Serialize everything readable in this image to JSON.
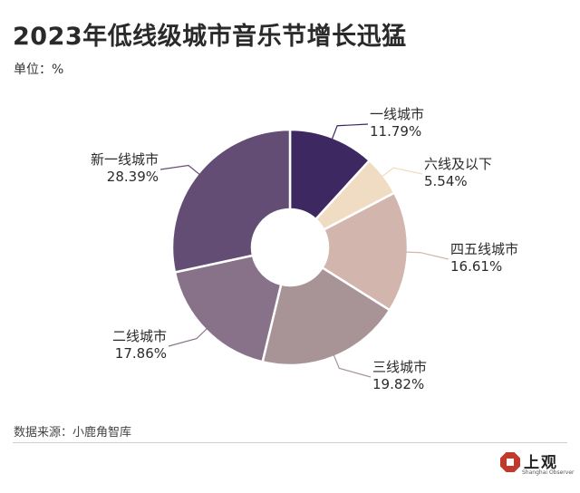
{
  "header": {
    "title": "2023年低线级城市音乐节增长迅猛",
    "unit": "单位：%"
  },
  "chart_data": {
    "type": "pie",
    "subtype": "donut",
    "categories": [
      "一线城市",
      "六线及以下",
      "四五线城市",
      "三线城市",
      "二线城市",
      "新一线城市"
    ],
    "values": [
      11.79,
      5.54,
      16.61,
      19.82,
      17.86,
      28.39
    ],
    "value_labels": [
      "11.79%",
      "5.54%",
      "16.61%",
      "19.82%",
      "17.86%",
      "28.39%"
    ],
    "colors": [
      "#3d2862",
      "#f0dcc3",
      "#d2b6ae",
      "#a89496",
      "#887289",
      "#634d74"
    ],
    "legend": "none"
  },
  "footer": {
    "source": "数据来源：小鹿角智库",
    "logo_cn": "上观",
    "logo_en": "Shanghai Observer",
    "logo_color": "#c0392b"
  }
}
